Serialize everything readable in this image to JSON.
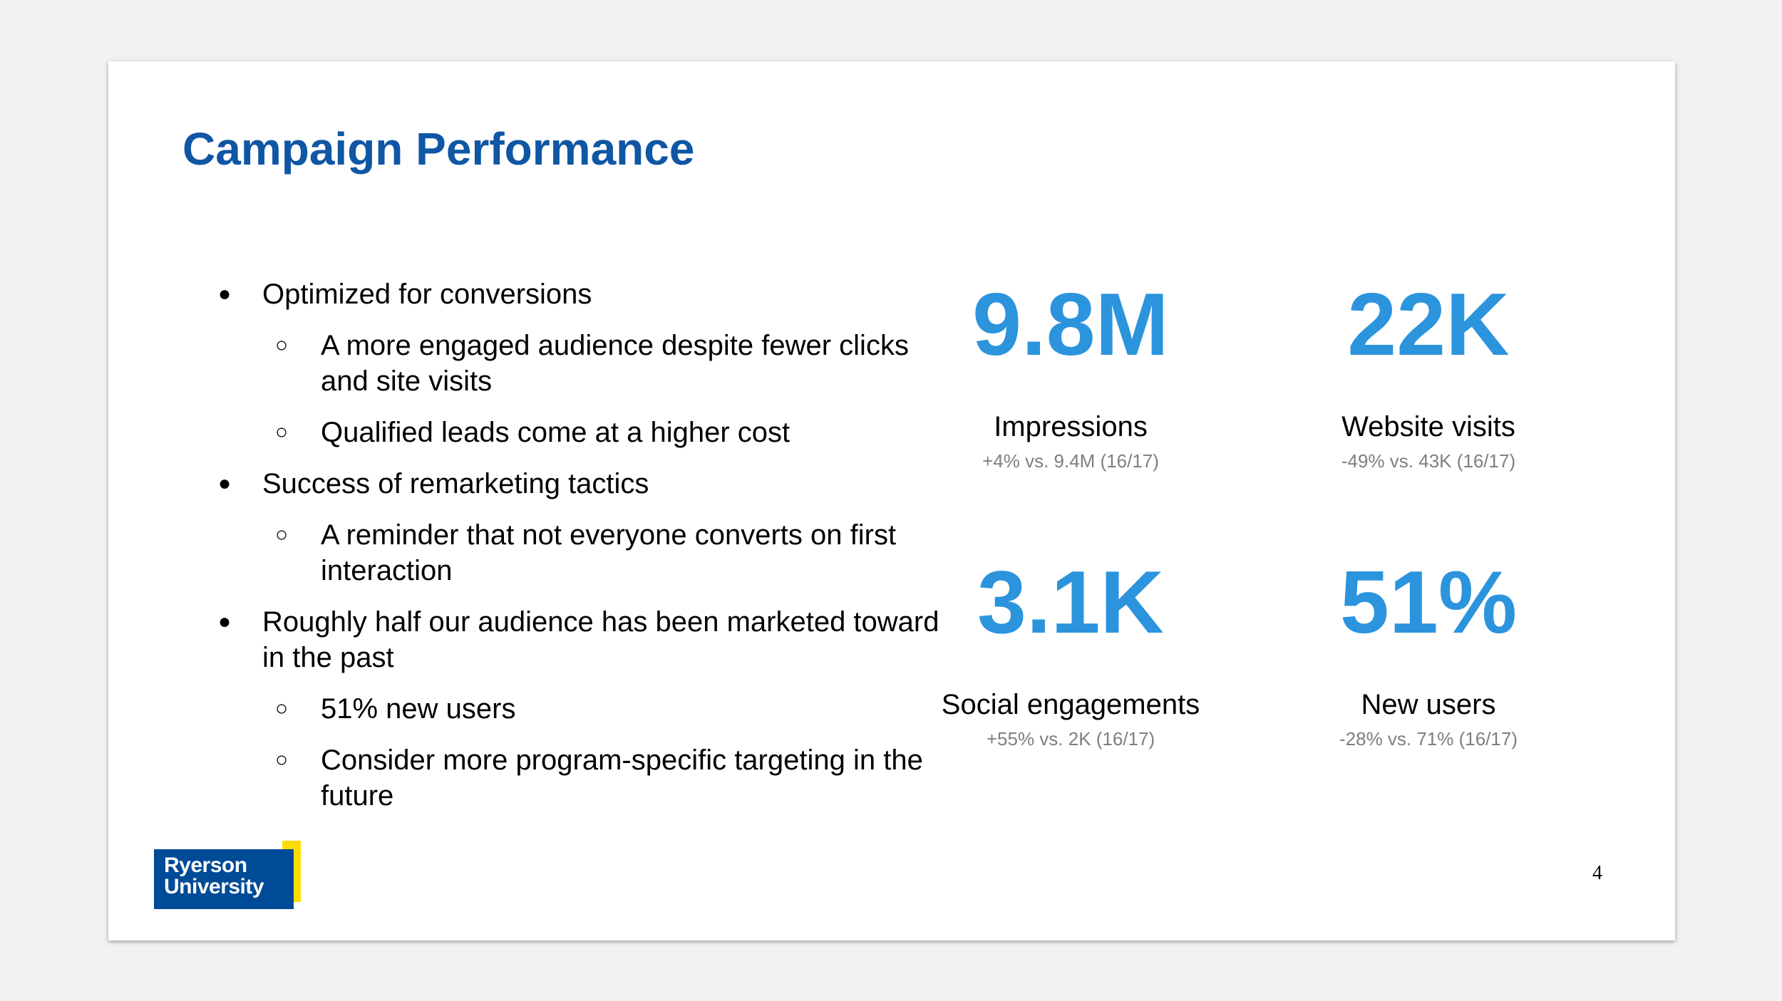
{
  "slide": {
    "title": "Campaign Performance",
    "page_number": "4"
  },
  "bullets": [
    {
      "text": "Optimized for conversions",
      "subs": [
        "A more engaged audience despite fewer clicks and site visits",
        "Qualified leads come at a higher cost"
      ]
    },
    {
      "text": "Success of remarketing tactics",
      "subs": [
        "A reminder that not everyone converts on first interaction"
      ]
    },
    {
      "text": "Roughly half our audience has been marketed toward in the past",
      "subs": [
        "51% new users",
        "Consider more program-specific targeting in the future"
      ]
    }
  ],
  "stats": [
    {
      "value": "9.8M",
      "label": "Impressions",
      "comparison": "+4% vs. 9.4M (16/17)"
    },
    {
      "value": "22K",
      "label": "Website visits",
      "comparison": "-49% vs. 43K (16/17)"
    },
    {
      "value": "3.1K",
      "label": "Social engagements",
      "comparison": "+55% vs. 2K (16/17)"
    },
    {
      "value": "51%",
      "label": "New users",
      "comparison": "-28% vs. 71% (16/17)"
    }
  ],
  "logo": {
    "line1": "Ryerson",
    "line2": "University"
  },
  "colors": {
    "title": "#0f56a4",
    "stat_value": "#2b94dd",
    "comparison": "#7f7f7f",
    "logo_blue": "#004b97",
    "logo_yellow": "#ffdc00"
  }
}
